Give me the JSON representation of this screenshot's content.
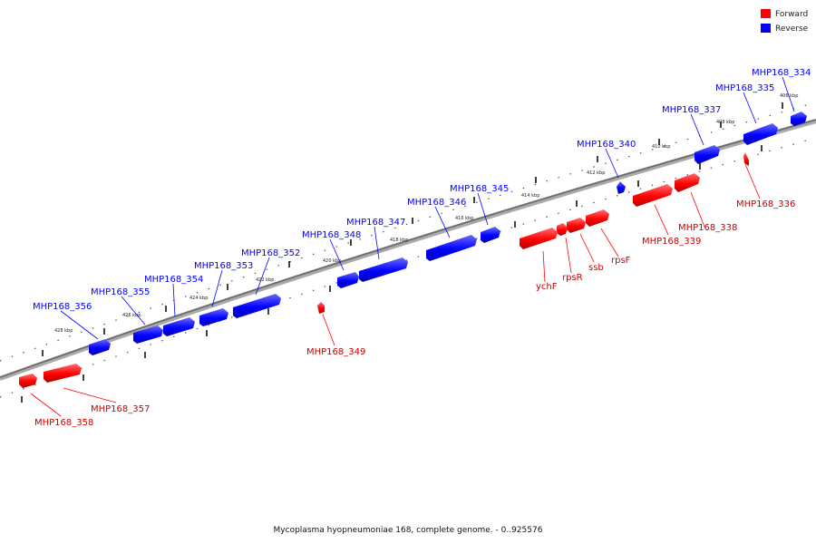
{
  "legend": {
    "forward_label": "Forward",
    "reverse_label": "Reverse",
    "forward_color": "#ff0000",
    "reverse_color": "#0000ff"
  },
  "caption": "Mycoplasma hyopneumoniae 168, complete genome. - 0..925576",
  "ticks": [
    "406 kbp",
    "408 kbp",
    "410 kbp",
    "412 kbp",
    "414 kbp",
    "416 kbp",
    "418 kbp",
    "420 kbp",
    "422 kbp",
    "424 kbp",
    "426 kbp",
    "428 kbp"
  ],
  "reverse_genes": [
    "MHP168_334",
    "MHP168_335",
    "MHP168_337",
    "MHP168_340",
    "MHP168_345",
    "MHP168_346",
    "MHP168_347",
    "MHP168_348",
    "MHP168_352",
    "MHP168_353",
    "MHP168_354",
    "MHP168_355",
    "MHP168_356"
  ],
  "forward_genes": [
    "MHP168_336",
    "MHP168_338",
    "MHP168_339",
    "rpsF",
    "ssb",
    "rpsR",
    "ychF",
    "MHP168_349",
    "MHP168_357",
    "MHP168_358"
  ]
}
